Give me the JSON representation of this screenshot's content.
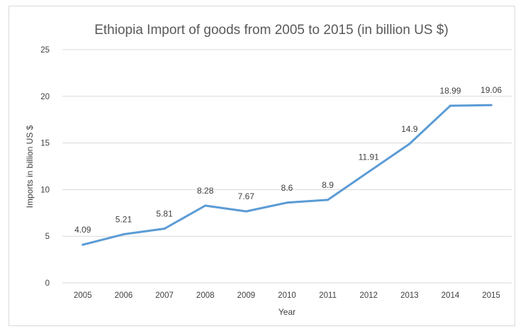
{
  "chart_data": {
    "type": "line",
    "title": "Ethiopia Import of goods from 2005 to 2015 (in billion US $)",
    "xlabel": "Year",
    "ylabel": "Imports in billion US $",
    "categories": [
      "2005",
      "2006",
      "2007",
      "2008",
      "2009",
      "2010",
      "2011",
      "2012",
      "2013",
      "2014",
      "2015"
    ],
    "series": [
      {
        "values": [
          4.09,
          5.21,
          5.81,
          8.28,
          7.67,
          8.6,
          8.9,
          11.91,
          14.9,
          18.99,
          19.06
        ]
      }
    ],
    "data_labels": [
      "4.09",
      "5.21",
      "5.81",
      "8.28",
      "7.67",
      "8.6",
      "8.9",
      "11.91",
      "14.9",
      "18.99",
      "19.06"
    ],
    "ylim": [
      0,
      25
    ],
    "yticks": [
      0,
      5,
      10,
      15,
      20,
      25
    ],
    "grid": true,
    "line_color": "#5b9bd5"
  }
}
